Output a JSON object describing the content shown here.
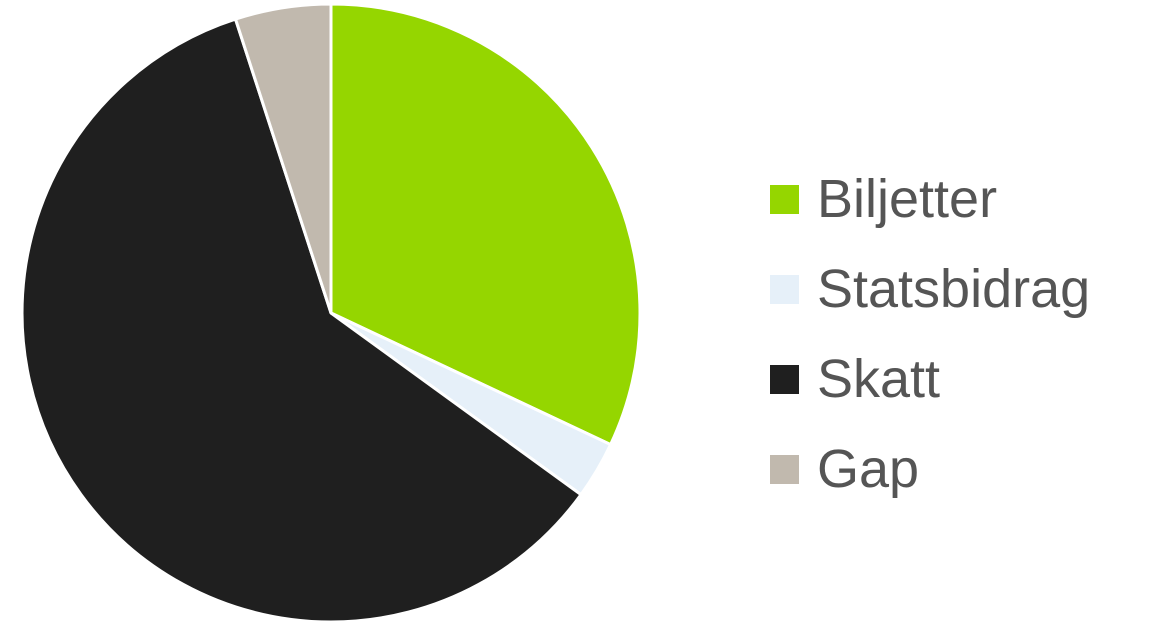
{
  "chart_data": {
    "type": "pie",
    "categories": [
      "Biljetter",
      "Statsbidrag",
      "Skatt",
      "Gap"
    ],
    "values": [
      32,
      3,
      60,
      5
    ],
    "colors": [
      "#95d600",
      "#e6f0f9",
      "#1f1f1f",
      "#c1b9ae"
    ],
    "start_angle_deg": 0,
    "direction": "clockwise",
    "legend_position": "right",
    "title": "",
    "xlabel": "",
    "ylabel": ""
  },
  "legend": {
    "items": [
      {
        "label": "Biljetter",
        "color": "#95d600"
      },
      {
        "label": "Statsbidrag",
        "color": "#e6f0f9"
      },
      {
        "label": "Skatt",
        "color": "#1f1f1f"
      },
      {
        "label": "Gap",
        "color": "#c1b9ae"
      }
    ]
  }
}
